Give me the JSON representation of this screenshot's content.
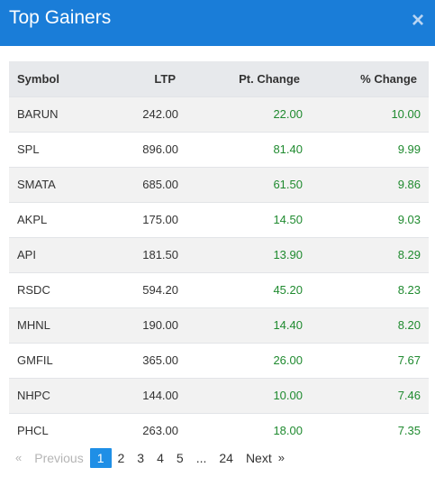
{
  "header": {
    "title": "Top Gainers",
    "close_label": "×"
  },
  "table": {
    "columns": [
      "Symbol",
      "LTP",
      "Pt. Change",
      "% Change"
    ],
    "rows": [
      {
        "symbol": "BARUN",
        "ltp": "242.00",
        "pt_change": "22.00",
        "pct_change": "10.00"
      },
      {
        "symbol": "SPL",
        "ltp": "896.00",
        "pt_change": "81.40",
        "pct_change": "9.99"
      },
      {
        "symbol": "SMATA",
        "ltp": "685.00",
        "pt_change": "61.50",
        "pct_change": "9.86"
      },
      {
        "symbol": "AKPL",
        "ltp": "175.00",
        "pt_change": "14.50",
        "pct_change": "9.03"
      },
      {
        "symbol": "API",
        "ltp": "181.50",
        "pt_change": "13.90",
        "pct_change": "8.29"
      },
      {
        "symbol": "RSDC",
        "ltp": "594.20",
        "pt_change": "45.20",
        "pct_change": "8.23"
      },
      {
        "symbol": "MHNL",
        "ltp": "190.00",
        "pt_change": "14.40",
        "pct_change": "8.20"
      },
      {
        "symbol": "GMFIL",
        "ltp": "365.00",
        "pt_change": "26.00",
        "pct_change": "7.67"
      },
      {
        "symbol": "NHPC",
        "ltp": "144.00",
        "pt_change": "10.00",
        "pct_change": "7.46"
      },
      {
        "symbol": "PHCL",
        "ltp": "263.00",
        "pt_change": "18.00",
        "pct_change": "7.35"
      }
    ]
  },
  "pagination": {
    "prev_icon": "«",
    "prev_label": "Previous",
    "pages": [
      "1",
      "2",
      "3",
      "4",
      "5",
      "...",
      "24"
    ],
    "active_page": "1",
    "next_label": "Next",
    "next_icon": "»"
  },
  "colors": {
    "header_bg": "#1a7dd8",
    "gain_green": "#1f8a2f",
    "active_page_bg": "#1f8fe6"
  }
}
